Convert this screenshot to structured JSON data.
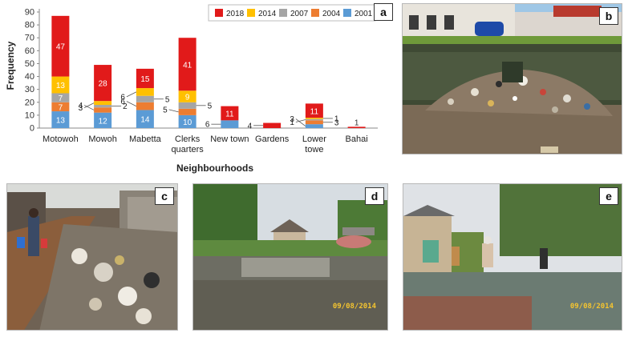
{
  "panels": {
    "a": "a",
    "b": "b",
    "c": "c",
    "d": "d",
    "e": "e"
  },
  "photo_stamps": {
    "d": "09/08/2014",
    "e": "09/08/2014"
  },
  "colors": {
    "2018": "#e11a1a",
    "2014": "#ffc000",
    "2007": "#a5a5a5",
    "2004": "#ed7d31",
    "2001": "#5b9bd5"
  },
  "chart_data": {
    "type": "bar",
    "stacked": true,
    "xlabel": "Neighbourhoods",
    "ylabel": "Frequency",
    "ylim": [
      0,
      90
    ],
    "yticks": [
      0,
      10,
      20,
      30,
      40,
      50,
      60,
      70,
      80,
      90
    ],
    "grid": false,
    "legend_position": "top-right",
    "categories": [
      "Motowoh",
      "Mowoh",
      "Mabetta",
      "Clerks quarters",
      "New town",
      "Gardens",
      "Lower towe",
      "Bahai"
    ],
    "category_lines": [
      [
        "Motowoh"
      ],
      [
        "Mowoh"
      ],
      [
        "Mabetta"
      ],
      [
        "Clerks",
        "quarters"
      ],
      [
        "New town"
      ],
      [
        "Gardens"
      ],
      [
        "Lower",
        "towe"
      ],
      [
        "Bahai"
      ]
    ],
    "legend_order": [
      "2018",
      "2014",
      "2007",
      "2004",
      "2001"
    ],
    "series": [
      {
        "name": "2001",
        "values": [
          13,
          12,
          14,
          10,
          6,
          0,
          3,
          0
        ]
      },
      {
        "name": "2004",
        "values": [
          7,
          4,
          6,
          5,
          0,
          0,
          3,
          0
        ]
      },
      {
        "name": "2007",
        "values": [
          7,
          2,
          5,
          5,
          0,
          0,
          1,
          0
        ]
      },
      {
        "name": "2014",
        "values": [
          13,
          3,
          6,
          9,
          0,
          0,
          1,
          0
        ]
      },
      {
        "name": "2018",
        "values": [
          47,
          28,
          15,
          41,
          11,
          4,
          11,
          1
        ]
      }
    ]
  }
}
